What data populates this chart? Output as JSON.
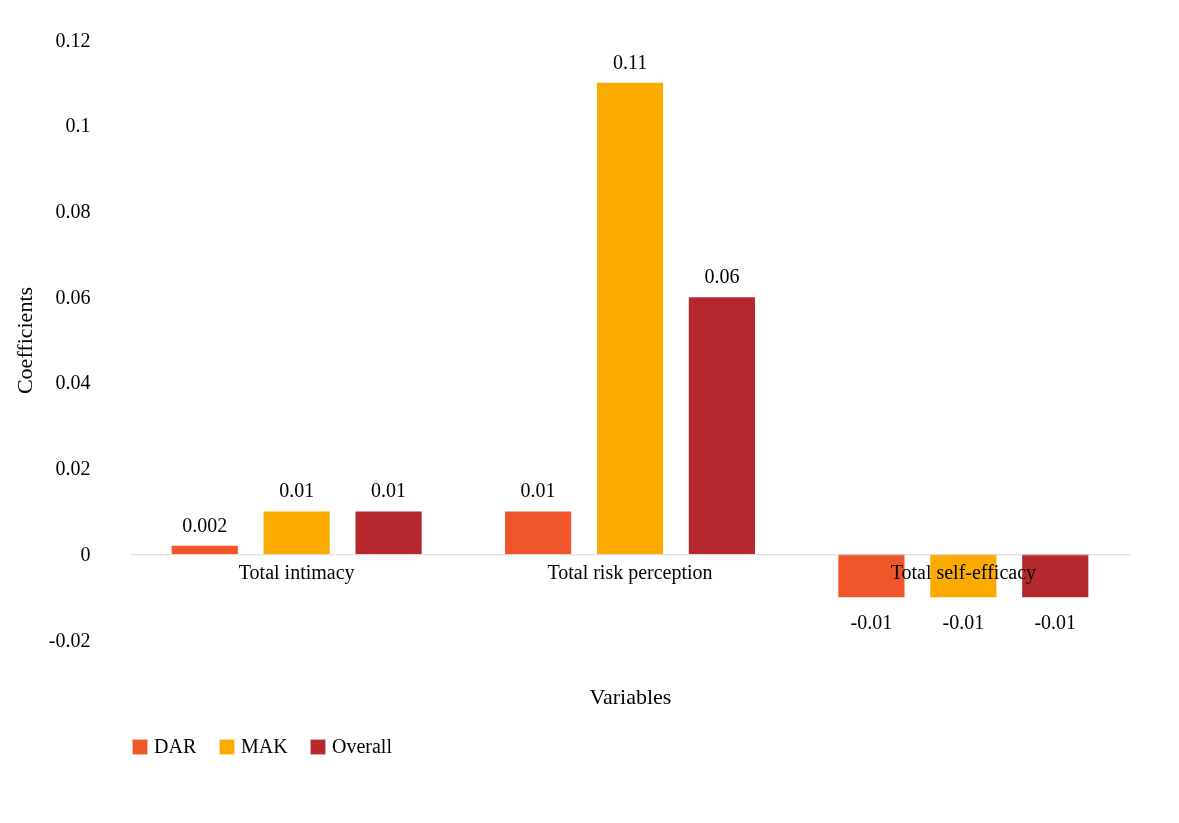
{
  "chart_data": {
    "type": "bar",
    "xlabel": "Variables",
    "ylabel": "Coefficients",
    "categories": [
      "Total intimacy",
      "Total risk perception",
      "Total self-efficacy"
    ],
    "series": [
      {
        "name": "DAR",
        "color": "#f0562a",
        "values": [
          0.002,
          0.01,
          -0.01
        ]
      },
      {
        "name": "MAK",
        "color": "#fbab00",
        "values": [
          0.01,
          0.11,
          -0.01
        ]
      },
      {
        "name": "Overall",
        "color": "#b4282e",
        "values": [
          0.01,
          0.06,
          -0.01
        ]
      }
    ],
    "ylim": [
      -0.02,
      0.12
    ],
    "yticks": [
      -0.02,
      0,
      0.02,
      0.04,
      0.06,
      0.08,
      0.1,
      0.12
    ],
    "data_labels": true,
    "grid": false,
    "legend": "bottom"
  }
}
